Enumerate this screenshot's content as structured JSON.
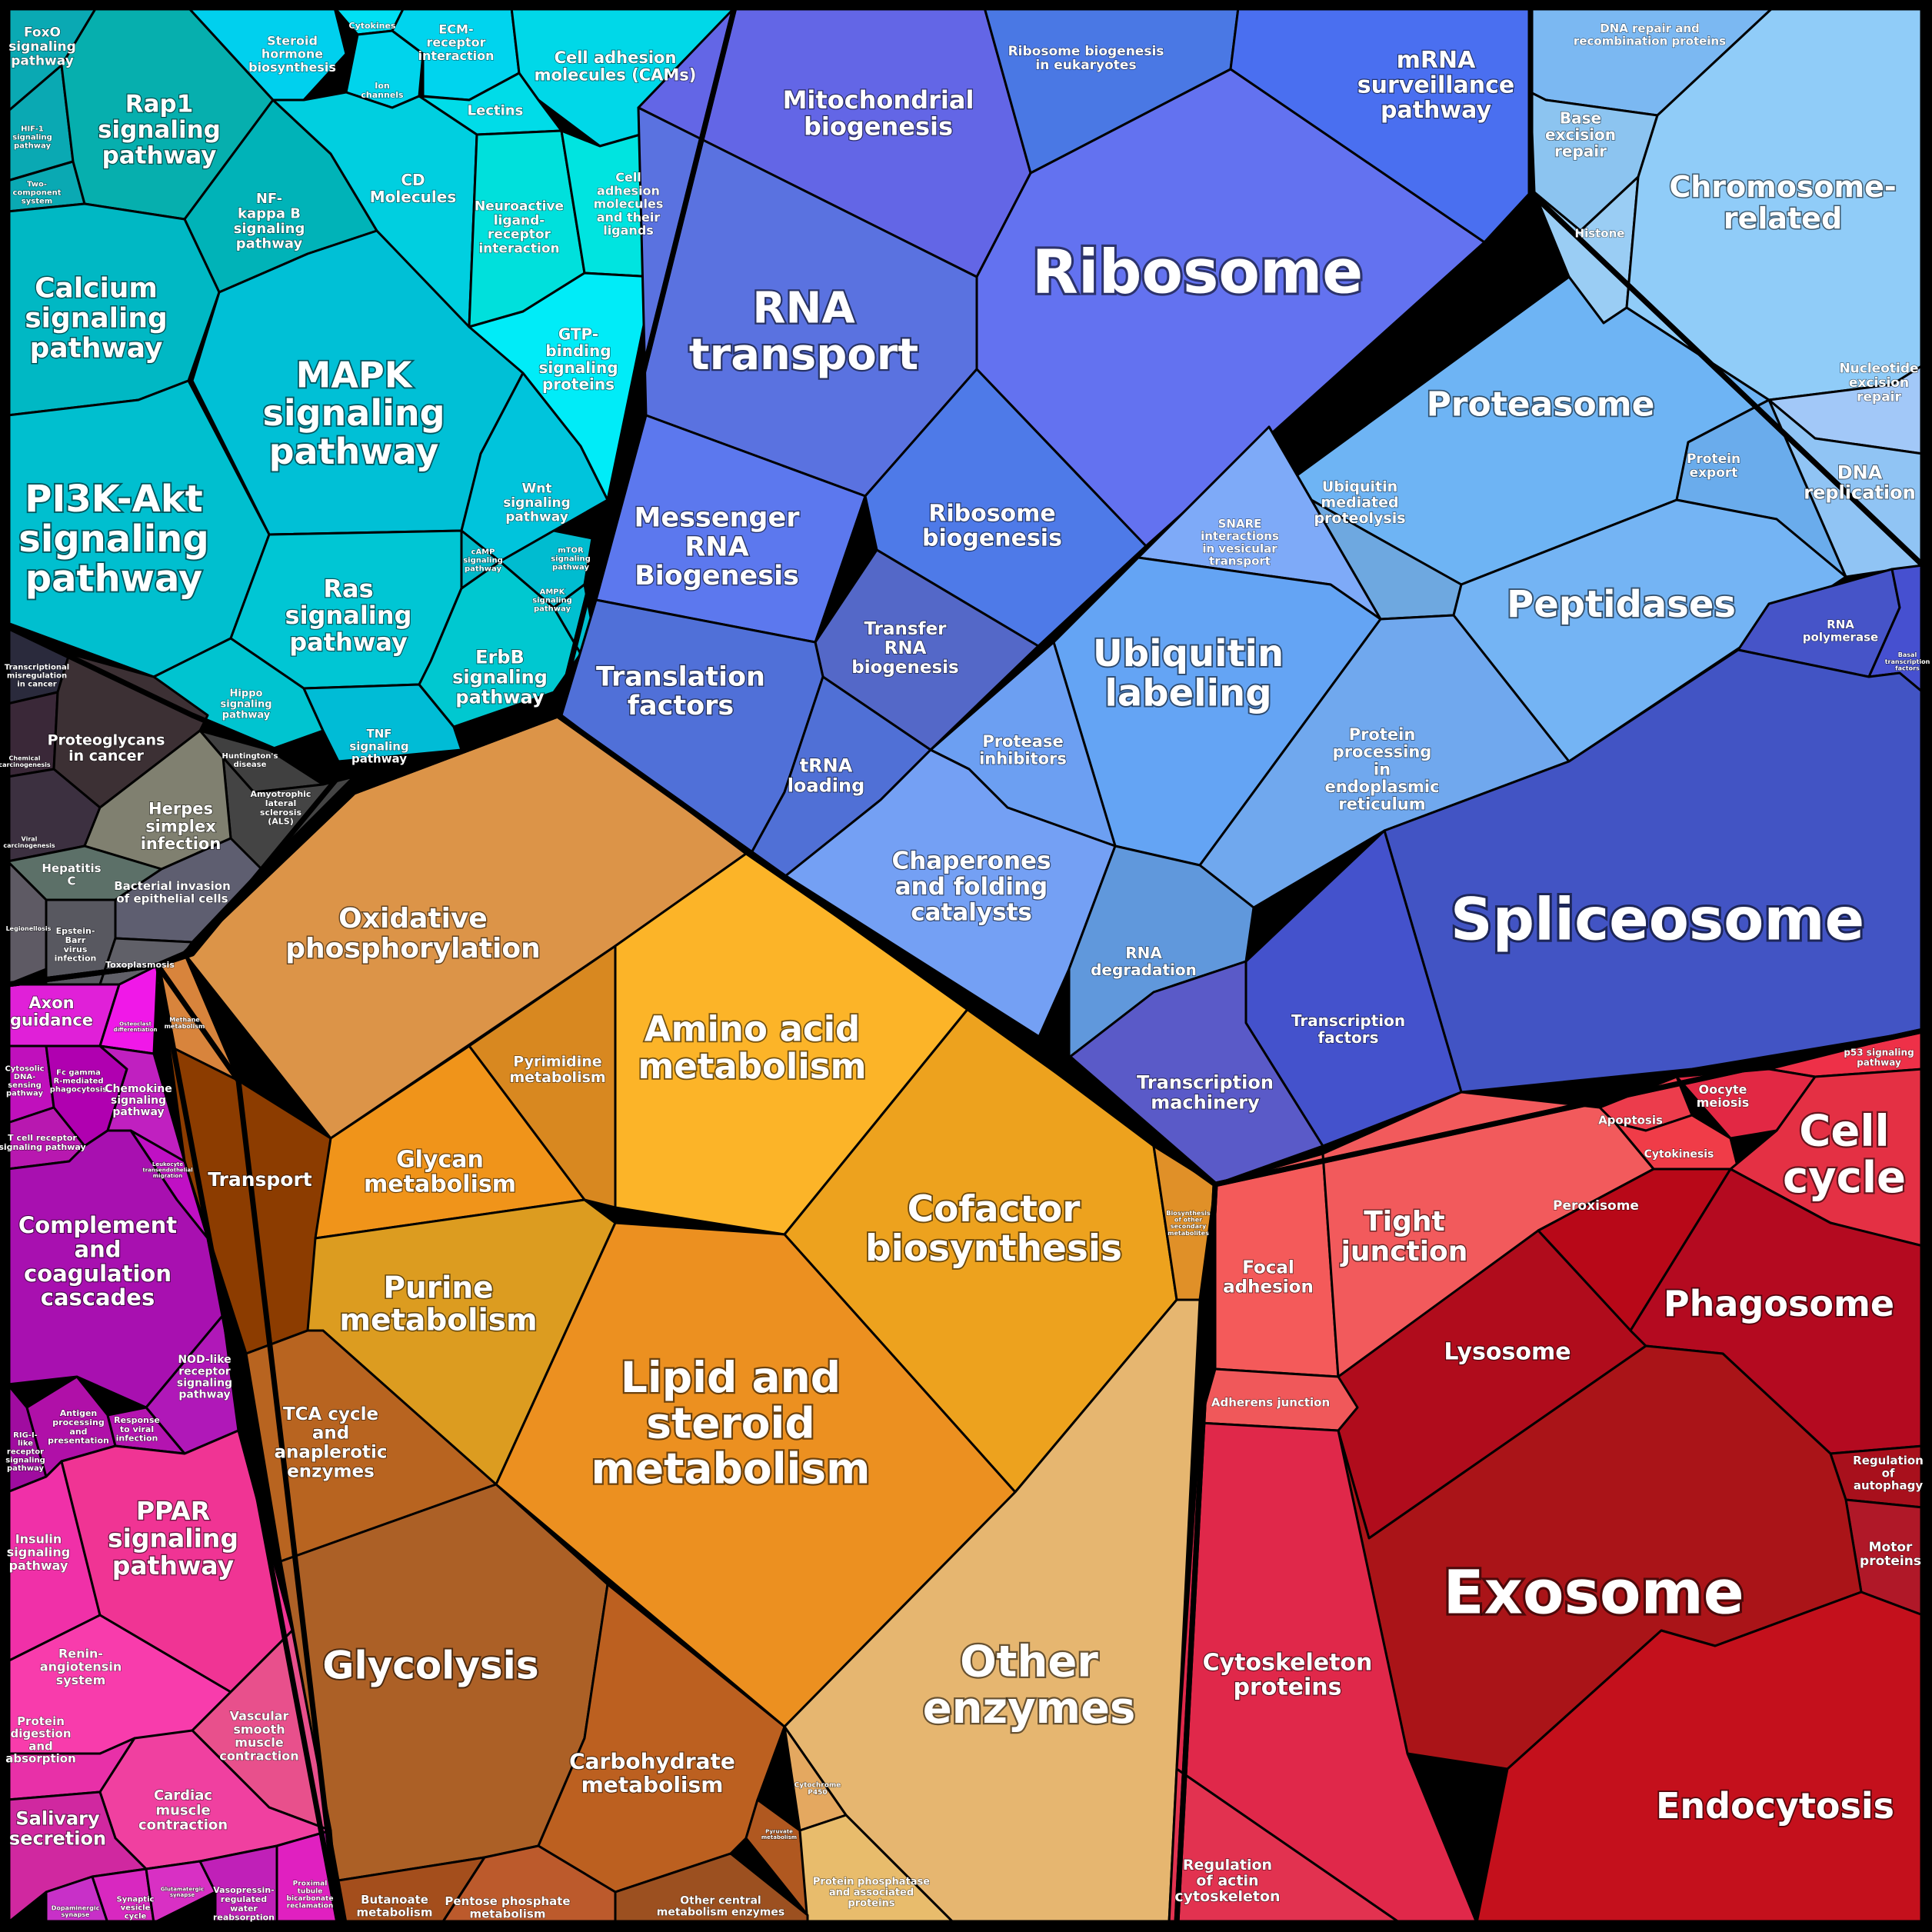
{
  "groups": {
    "signaling": "#00bcd4",
    "genetic": "#5b6ee1",
    "metabolism": "#f0a020",
    "disease": "#3a3a3a",
    "organismal": "#d21fc6",
    "cellular": "#d0172d",
    "repair": "#7fc0f5"
  },
  "cells": [
    {
      "name": "foxo",
      "color": "#0aa9b3",
      "label": [
        "FoxO",
        "signaling",
        "pathway"
      ]
    },
    {
      "name": "hif1",
      "color": "#0aa9b3",
      "label": [
        "HIF-1",
        "signaling",
        "pathway"
      ]
    },
    {
      "name": "two-component",
      "color": "#0aa9b3",
      "label": [
        "Two-",
        "component",
        "system"
      ]
    },
    {
      "name": "rap1",
      "color": "#06afae",
      "label": [
        "Rap1",
        "signaling",
        "pathway"
      ]
    },
    {
      "name": "nfkb",
      "color": "#00b3b8",
      "label": [
        "NF-",
        "kappa B",
        "signaling",
        "pathway"
      ]
    },
    {
      "name": "calcium",
      "color": "#00b8c4",
      "label": [
        "Calcium",
        "signaling",
        "pathway"
      ]
    },
    {
      "name": "mapk",
      "color": "#00c0d6",
      "label": [
        "MAPK",
        "signaling",
        "pathway"
      ]
    },
    {
      "name": "pi3k",
      "color": "#00bfcf",
      "label": [
        "PI3K-Akt",
        "signaling",
        "pathway"
      ]
    },
    {
      "name": "ras",
      "color": "#00c6d4",
      "label": [
        "Ras",
        "signaling",
        "pathway"
      ]
    },
    {
      "name": "hippo",
      "color": "#00c4d0",
      "label": [
        "Hippo",
        "signaling",
        "pathway"
      ]
    },
    {
      "name": "tnf",
      "color": "#00bcd6",
      "label": [
        "TNF",
        "signaling",
        "pathway"
      ]
    },
    {
      "name": "erbb",
      "color": "#00c8d0",
      "label": [
        "ErbB",
        "signaling",
        "pathway"
      ]
    },
    {
      "name": "wnt",
      "color": "#00c4dc",
      "label": [
        "Wnt",
        "signaling",
        "pathway"
      ]
    },
    {
      "name": "camp",
      "color": "#00b8c8",
      "label": [
        "cAMP",
        "signaling",
        "pathway"
      ]
    },
    {
      "name": "mtor",
      "color": "#00bcd0",
      "label": [
        "mTOR",
        "signaling",
        "pathway"
      ]
    },
    {
      "name": "ampk",
      "color": "#00c0d0",
      "label": [
        "AMPK",
        "signaling",
        "pathway"
      ]
    },
    {
      "name": "steroid-hormone",
      "color": "#00d0ee",
      "label": [
        "Steroid",
        "hormone",
        "biosynthesis"
      ]
    },
    {
      "name": "cytokines",
      "color": "#00e0f4",
      "label": [
        "Cytokines"
      ]
    },
    {
      "name": "ion-channels",
      "color": "#00d4ec",
      "label": [
        "Ion",
        "channels"
      ]
    },
    {
      "name": "ecm-receptor",
      "color": "#00d4ee",
      "label": [
        "ECM-",
        "receptor",
        "interaction"
      ]
    },
    {
      "name": "cams",
      "color": "#00d8e8",
      "label": [
        "Cell adhesion",
        "molecules (CAMs)"
      ]
    },
    {
      "name": "lectins",
      "color": "#00dce8",
      "label": [
        "Lectins"
      ]
    },
    {
      "name": "cd-molecules",
      "color": "#00cfe0",
      "label": [
        "CD",
        "Molecules"
      ]
    },
    {
      "name": "neuroactive",
      "color": "#00e0dc",
      "label": [
        "Neuroactive",
        "ligand-",
        "receptor",
        "interaction"
      ]
    },
    {
      "name": "cam-ligands",
      "color": "#00e4e0",
      "label": [
        "Cell",
        "adhesion",
        "molecules",
        "and their",
        "ligands"
      ]
    },
    {
      "name": "gtp-binding",
      "color": "#00ecf8",
      "label": [
        "GTP-",
        "binding",
        "signaling",
        "proteins"
      ]
    },
    {
      "name": "mitochondrial-biogenesis",
      "color": "#6366e6",
      "label": [
        "Mitochondrial",
        "biogenesis"
      ]
    },
    {
      "name": "ribosome-biogenesis-eukaryotes",
      "color": "#4a78e4",
      "label": [
        "Ribosome biogenesis",
        "in eukaryotes"
      ]
    },
    {
      "name": "mrna-surveillance",
      "color": "#4a6ff0",
      "label": [
        "mRNA",
        "surveillance",
        "pathway"
      ]
    },
    {
      "name": "ribosome",
      "color": "#6372f0",
      "label": [
        "Ribosome"
      ]
    },
    {
      "name": "rna-transport",
      "color": "#5a72e0",
      "label": [
        "RNA",
        "transport"
      ]
    },
    {
      "name": "messenger-rna",
      "color": "#5c78ee",
      "label": [
        "Messenger",
        "RNA",
        "Biogenesis"
      ]
    },
    {
      "name": "ribosome-biogenesis",
      "color": "#4e7ae8",
      "label": [
        "Ribosome",
        "biogenesis"
      ]
    },
    {
      "name": "transfer-rna",
      "color": "#5468c8",
      "label": [
        "Transfer",
        "RNA",
        "biogenesis"
      ]
    },
    {
      "name": "translation-factors",
      "color": "#5070d8",
      "label": [
        "Translation",
        "factors"
      ]
    },
    {
      "name": "trna-loading",
      "color": "#5070d6",
      "label": [
        "tRNA",
        "loading"
      ]
    },
    {
      "name": "dna-repair-recombination",
      "color": "#7bb8f2",
      "label": [
        "DNA repair and",
        "recombination proteins"
      ]
    },
    {
      "name": "base-excision",
      "color": "#8cc4f0",
      "label": [
        "Base",
        "excision",
        "repair"
      ]
    },
    {
      "name": "histone",
      "color": "#9acdf4",
      "label": [
        "Histone"
      ]
    },
    {
      "name": "chromosome",
      "color": "#90ccf8",
      "label": [
        "Chromosome-",
        "related"
      ]
    },
    {
      "name": "nucleotide-excision",
      "color": "#a2c8f8",
      "label": [
        "Nucleotide",
        "excision",
        "repair"
      ]
    },
    {
      "name": "dna-replication",
      "color": "#90c4f4",
      "label": [
        "DNA",
        "replication"
      ]
    },
    {
      "name": "proteasome",
      "color": "#6eb4f4",
      "label": [
        "Proteasome"
      ]
    },
    {
      "name": "protein-export",
      "color": "#6aacec",
      "label": [
        "Protein",
        "export"
      ]
    },
    {
      "name": "ubiquitin-mediated",
      "color": "#6ea8e0",
      "label": [
        "Ubiquitin",
        "mediated",
        "proteolysis"
      ]
    },
    {
      "name": "snare",
      "color": "#7eaaf8",
      "label": [
        "SNARE",
        "interactions",
        "in vesicular",
        "transport"
      ]
    },
    {
      "name": "peptidases",
      "color": "#74b4f4",
      "label": [
        "Peptidases"
      ]
    },
    {
      "name": "ubiquitin-labeling",
      "color": "#64a4f4",
      "label": [
        "Ubiquitin",
        "labeling"
      ]
    },
    {
      "name": "protein-processing-er",
      "color": "#70a8ee",
      "label": [
        "Protein",
        "processing",
        "in",
        "endoplasmic",
        "reticulum"
      ]
    },
    {
      "name": "protease-inhibitors",
      "color": "#6c9ff2",
      "label": [
        "Protease",
        "inhibitors"
      ]
    },
    {
      "name": "chaperones",
      "color": "#74a0f4",
      "label": [
        "Chaperones",
        "and folding",
        "catalysts"
      ]
    },
    {
      "name": "rna-degradation",
      "color": "#6098dc",
      "label": [
        "RNA",
        "degradation"
      ]
    },
    {
      "name": "rna-polymerase",
      "color": "#4654c8",
      "label": [
        "RNA",
        "polymerase"
      ]
    },
    {
      "name": "basal-transcription",
      "color": "#4650d0",
      "label": [
        "Basal",
        "transcription",
        "factors"
      ]
    },
    {
      "name": "spliceosome",
      "color": "#4254c4",
      "label": [
        "Spliceosome"
      ]
    },
    {
      "name": "transcription-factors",
      "color": "#4452cc",
      "label": [
        "Transcription",
        "factors"
      ]
    },
    {
      "name": "transcription-machinery",
      "color": "#5a5ac8",
      "label": [
        "Transcription",
        "machinery"
      ]
    },
    {
      "name": "transcriptional-misregulation",
      "color": "#2a2a3c",
      "label": [
        "Transcriptional",
        "misregulation",
        "in cancer"
      ]
    },
    {
      "name": "chemical-carcinogenesis",
      "color": "#3a2838",
      "label": [
        "Chemical",
        "carcinogenesis"
      ]
    },
    {
      "name": "proteoglycans",
      "color": "#3c3034",
      "label": [
        "Proteoglycans",
        "in cancer"
      ]
    },
    {
      "name": "huntingtons",
      "color": "#404040",
      "label": [
        "Huntington's",
        "disease"
      ]
    },
    {
      "name": "als",
      "color": "#444444",
      "label": [
        "Amyotrophic",
        "lateral",
        "sclerosis",
        "(ALS)"
      ]
    },
    {
      "name": "viral-carcinogenesis",
      "color": "#3c3040",
      "label": [
        "Viral",
        "carcinogenesis"
      ]
    },
    {
      "name": "herpes",
      "color": "#808070",
      "label": [
        "Herpes",
        "simplex",
        "infection"
      ]
    },
    {
      "name": "hepatitis-c",
      "color": "#5c7068",
      "label": [
        "Hepatitis",
        "C"
      ]
    },
    {
      "name": "legionellosis",
      "color": "#5e5a64",
      "label": [
        "Legionellosis"
      ]
    },
    {
      "name": "bacterial-invasion",
      "color": "#5e5e70",
      "label": [
        "Bacterial invasion",
        "of epithelial cells"
      ]
    },
    {
      "name": "epstein-barr",
      "color": "#585860",
      "label": [
        "Epstein-",
        "Barr",
        "virus",
        "infection"
      ]
    },
    {
      "name": "toxoplasmosis",
      "color": "#606068",
      "label": [
        "Toxoplasmosis"
      ]
    },
    {
      "name": "oxidative-phosphorylation",
      "color": "#dc9448",
      "label": [
        "Oxidative",
        "phosphorylation"
      ]
    },
    {
      "name": "methane",
      "color": "#d8843c",
      "label": [
        "Methane",
        "metabolism"
      ]
    },
    {
      "name": "transport",
      "color": "#8c3c00",
      "label": [
        "Transport"
      ]
    },
    {
      "name": "pyrimidine",
      "color": "#d88820",
      "label": [
        "Pyrimidine",
        "metabolism"
      ]
    },
    {
      "name": "amino-acid",
      "color": "#fcb428",
      "label": [
        "Amino acid",
        "metabolism"
      ]
    },
    {
      "name": "glycan",
      "color": "#f0941a",
      "label": [
        "Glycan",
        "metabolism"
      ]
    },
    {
      "name": "cofactor",
      "color": "#eda21e",
      "label": [
        "Cofactor",
        "biosynthesis"
      ]
    },
    {
      "name": "other-secondary",
      "color": "#e09028",
      "label": [
        "Biosynthesis",
        "of other",
        "secondary",
        "metabolites"
      ]
    },
    {
      "name": "purine",
      "color": "#dc9c20",
      "label": [
        "Purine",
        "metabolism"
      ]
    },
    {
      "name": "lipid-steroid",
      "color": "#ec9020",
      "label": [
        "Lipid and",
        "steroid",
        "metabolism"
      ]
    },
    {
      "name": "tca",
      "color": "#b86420",
      "label": [
        "TCA cycle",
        "and",
        "anaplerotic",
        "enzymes"
      ]
    },
    {
      "name": "glycolysis",
      "color": "#ac6026",
      "label": [
        "Glycolysis"
      ]
    },
    {
      "name": "other-enzymes",
      "color": "#e6b670",
      "label": [
        "Other",
        "enzymes"
      ]
    },
    {
      "name": "carbohydrate",
      "color": "#bc6020",
      "label": [
        "Carbohydrate",
        "metabolism"
      ]
    },
    {
      "name": "cytochrome-p450",
      "color": "#e4a860",
      "label": [
        "Cytochrome",
        "P450"
      ]
    },
    {
      "name": "pyruvate",
      "color": "#b05820",
      "label": [
        "Pyruvate",
        "metabolism"
      ]
    },
    {
      "name": "protein-phosphatase",
      "color": "#e8bc6c",
      "label": [
        "Protein phosphatase",
        "and associated",
        "proteins"
      ]
    },
    {
      "name": "butanoate",
      "color": "#a44e1c",
      "label": [
        "Butanoate",
        "metabolism"
      ]
    },
    {
      "name": "pentose-phosphate",
      "color": "#bc5a2c",
      "label": [
        "Pentose phosphate",
        "metabolism"
      ]
    },
    {
      "name": "other-central",
      "color": "#9c5020",
      "label": [
        "Other central",
        "metabolism enzymes"
      ]
    },
    {
      "name": "axon-guidance",
      "color": "#e020d8",
      "label": [
        "Axon",
        "guidance"
      ]
    },
    {
      "name": "osteoclast",
      "color": "#f018e8",
      "label": [
        "Osteoclast",
        "differentiation"
      ]
    },
    {
      "name": "cytosolic-dna",
      "color": "#c010bc",
      "label": [
        "Cytosolic",
        "DNA-",
        "sensing",
        "pathway"
      ]
    },
    {
      "name": "fc-gamma",
      "color": "#b000b0",
      "label": [
        "Fc gamma",
        "R-mediated",
        "phagocytosis"
      ]
    },
    {
      "name": "chemokine",
      "color": "#c020c0",
      "label": [
        "Chemokine",
        "signaling",
        "pathway"
      ]
    },
    {
      "name": "t-cell",
      "color": "#b818b0",
      "label": [
        "T cell receptor",
        "signaling pathway"
      ]
    },
    {
      "name": "leukocyte",
      "color": "#c010c4",
      "label": [
        "Leukocyte",
        "transendothelial",
        "migration"
      ]
    },
    {
      "name": "complement",
      "color": "#a810b0",
      "label": [
        "Complement",
        "and",
        "coagulation",
        "cascades"
      ]
    },
    {
      "name": "nod-like",
      "color": "#b018b8",
      "label": [
        "NOD-like",
        "receptor",
        "signaling",
        "pathway"
      ]
    },
    {
      "name": "rig-i",
      "color": "#a00ca0",
      "label": [
        "RIG-I-",
        "like",
        "receptor",
        "signaling",
        "pathway"
      ]
    },
    {
      "name": "antigen",
      "color": "#b010a8",
      "label": [
        "Antigen",
        "processing",
        "and",
        "presentation"
      ]
    },
    {
      "name": "response-viral",
      "color": "#b414b0",
      "label": [
        "Response",
        "to viral",
        "infection"
      ]
    },
    {
      "name": "insulin",
      "color": "#f030a8",
      "label": [
        "Insulin",
        "signaling",
        "pathway"
      ]
    },
    {
      "name": "ppar",
      "color": "#f03494",
      "label": [
        "PPAR",
        "signaling",
        "pathway"
      ]
    },
    {
      "name": "renin",
      "color": "#f83cac",
      "label": [
        "Renin-",
        "angiotensin",
        "system"
      ]
    },
    {
      "name": "protein-digestion",
      "color": "#e830a8",
      "label": [
        "Protein",
        "digestion",
        "and",
        "absorption"
      ]
    },
    {
      "name": "vascular",
      "color": "#e8508c",
      "label": [
        "Vascular",
        "smooth",
        "muscle",
        "contraction"
      ]
    },
    {
      "name": "cardiac",
      "color": "#f040a0",
      "label": [
        "Cardiac",
        "muscle",
        "contraction"
      ]
    },
    {
      "name": "salivary",
      "color": "#d028a0",
      "label": [
        "Salivary",
        "secretion"
      ]
    },
    {
      "name": "dopaminergic",
      "color": "#c830c8",
      "label": [
        "Dopaminergic",
        "synapse"
      ]
    },
    {
      "name": "synaptic-vesicle",
      "color": "#d828c0",
      "label": [
        "Synaptic",
        "vesicle",
        "cycle"
      ]
    },
    {
      "name": "glutamatergic",
      "color": "#d830c4",
      "label": [
        "Glutamatergic",
        "synapse"
      ]
    },
    {
      "name": "vasopressin",
      "color": "#c020b8",
      "label": [
        "Vasopressin-",
        "regulated",
        "water",
        "reabsorption"
      ]
    },
    {
      "name": "proximal-tubule",
      "color": "#e020c0",
      "label": [
        "Proximal",
        "tubule",
        "bicarbonate",
        "reclamation"
      ]
    },
    {
      "name": "p53",
      "color": "#ee3048",
      "label": [
        "p53 signaling",
        "pathway"
      ]
    },
    {
      "name": "oocyte-meiosis",
      "color": "#e22844",
      "label": [
        "Oocyte",
        "meiosis"
      ]
    },
    {
      "name": "apoptosis",
      "color": "#ec3c4c",
      "label": [
        "Apoptosis"
      ]
    },
    {
      "name": "cytokinesis",
      "color": "#f03c48",
      "label": [
        "Cytokinesis"
      ]
    },
    {
      "name": "cell-cycle",
      "color": "#e43044",
      "label": [
        "Cell",
        "cycle"
      ]
    },
    {
      "name": "focal-adhesion",
      "color": "#f45a5a",
      "label": [
        "Focal",
        "adhesion"
      ]
    },
    {
      "name": "tight-junction",
      "color": "#f25a5c",
      "label": [
        "Tight",
        "junction"
      ]
    },
    {
      "name": "peroxisome",
      "color": "#b80818",
      "label": [
        "Peroxisome"
      ]
    },
    {
      "name": "lysosome",
      "color": "#b00c1c",
      "label": [
        "Lysosome"
      ]
    },
    {
      "name": "phagosome",
      "color": "#b40a20",
      "label": [
        "Phagosome"
      ]
    },
    {
      "name": "adherens-junction",
      "color": "#f0585a",
      "label": [
        "Adherens junction"
      ]
    },
    {
      "name": "regulation-autophagy",
      "color": "#a8101c",
      "label": [
        "Regulation",
        "of",
        "autophagy"
      ]
    },
    {
      "name": "motor-proteins",
      "color": "#b01828",
      "label": [
        "Motor",
        "proteins"
      ]
    },
    {
      "name": "exosome",
      "color": "#aa1418",
      "label": [
        "Exosome"
      ]
    },
    {
      "name": "cytoskeleton",
      "color": "#e0284a",
      "label": [
        "Cytoskeleton",
        "proteins"
      ]
    },
    {
      "name": "regulation-actin",
      "color": "#e23250",
      "label": [
        "Regulation",
        "of actin",
        "cytoskeleton"
      ]
    },
    {
      "name": "endocytosis",
      "color": "#c4101c",
      "label": [
        "Endocytosis"
      ]
    }
  ]
}
